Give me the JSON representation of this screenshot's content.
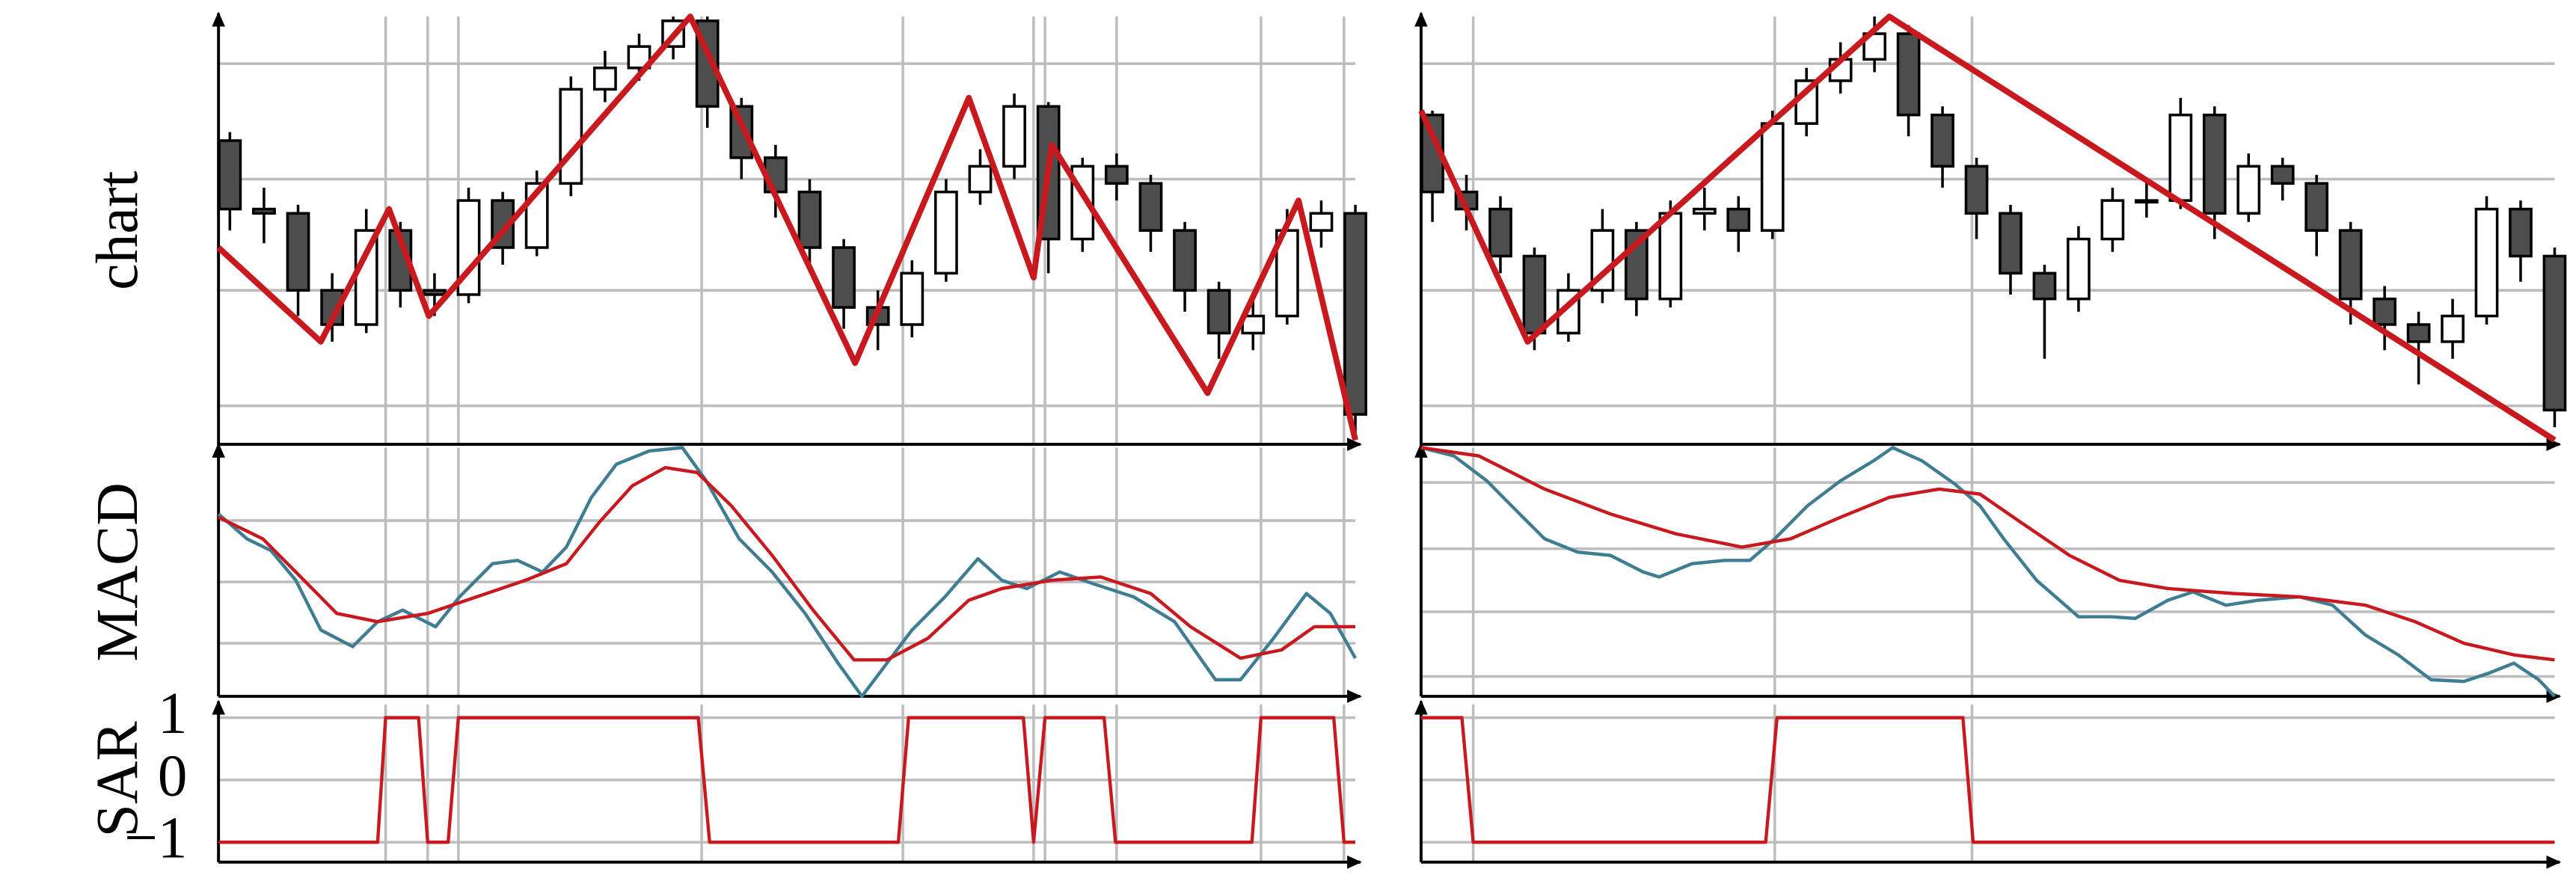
{
  "chart_data": [
    {
      "type": "candlestick",
      "ylabel": "chart",
      "xlim": [
        0,
        100
      ],
      "ylim": [
        0,
        100
      ],
      "yticks": [
        9,
        36,
        62,
        89
      ],
      "tick_labels": false,
      "grid": true,
      "xticks": [
        14.7,
        18.4,
        21.1,
        42.5,
        60.2,
        71.7,
        72.7,
        79,
        91.7,
        99
      ],
      "up_color": "#ffffff",
      "down_color": "#4d4d4d",
      "candles": {
        "x": [
          1,
          4,
          7,
          10,
          13,
          16,
          19,
          22,
          25,
          28,
          31,
          34,
          37,
          40,
          43,
          46,
          49,
          52,
          55,
          58,
          61,
          64,
          67,
          70,
          73,
          76,
          79,
          82,
          85,
          88,
          91,
          94,
          97,
          100
        ],
        "open": [
          71,
          55,
          54,
          36,
          28,
          50,
          36,
          35,
          57,
          46,
          61,
          83,
          88,
          93,
          99,
          79,
          67,
          59,
          46,
          32,
          28,
          40,
          59,
          65,
          79,
          48,
          65,
          61,
          50,
          36,
          26,
          30,
          50,
          54
        ],
        "high": [
          73,
          60,
          56,
          40,
          55,
          52,
          40,
          60,
          59,
          64,
          86,
          92,
          96,
          100,
          100,
          81,
          70,
          62,
          48,
          36,
          43,
          62,
          69,
          82,
          80,
          67,
          68,
          63,
          52,
          38,
          35,
          55,
          57,
          56
        ],
        "low": [
          50,
          47,
          30,
          24,
          26,
          32,
          30,
          33,
          42,
          44,
          58,
          80,
          85,
          90,
          74,
          62,
          53,
          42,
          27,
          22,
          25,
          38,
          56,
          62,
          40,
          45,
          57,
          45,
          31,
          20,
          22,
          28,
          46,
          2
        ],
        "close": [
          55,
          54,
          36,
          28,
          50,
          36,
          35,
          57,
          46,
          61,
          83,
          88,
          93,
          99,
          79,
          67,
          59,
          46,
          32,
          28,
          40,
          59,
          65,
          79,
          48,
          65,
          61,
          50,
          36,
          26,
          30,
          50,
          54,
          7
        ]
      },
      "series": [
        {
          "color": "#c8191e",
          "x": [
            0,
            9,
            15,
            18.5,
            41.5,
            56,
            66,
            71.7,
            73.3,
            87,
            95,
            100
          ],
          "values": [
            46,
            24,
            55,
            30,
            100,
            19,
            81,
            39,
            70,
            12,
            57,
            1
          ]
        }
      ]
    },
    {
      "type": "line",
      "ylabel": "MACD",
      "xlim": [
        0,
        100
      ],
      "ylim": [
        0,
        150
      ],
      "yticks": [
        32,
        69,
        106
      ],
      "tick_labels": false,
      "grid": true,
      "xticks": [
        14.7,
        18.4,
        21.1,
        42.5,
        60.2,
        71.7,
        72.7,
        79,
        91.7,
        99
      ],
      "series": [
        {
          "color": "#3f7d92",
          "x": [
            0,
            2.5,
            4.6,
            6.8,
            9,
            11.8,
            14,
            16.2,
            19.1,
            21.2,
            24.1,
            26.3,
            28.5,
            30.6,
            32.8,
            35,
            37.9,
            40.8,
            42.9,
            45.8,
            48.7,
            51.6,
            54.5,
            56.6,
            58.8,
            61,
            63.9,
            66.8,
            68.9,
            71.1,
            74,
            76.9,
            80.5,
            84.1,
            87.7,
            89.9,
            92.8,
            95.7,
            97.8,
            100
          ],
          "values": [
            110,
            95,
            88,
            70,
            40,
            30,
            45,
            52,
            42,
            60,
            80,
            82,
            75,
            90,
            120,
            140,
            148,
            150,
            130,
            95,
            75,
            50,
            20,
            0,
            20,
            40,
            60,
            83,
            70,
            65,
            75,
            68,
            60,
            45,
            10,
            10,
            35,
            62,
            50,
            23
          ]
        },
        {
          "color": "#c8191e",
          "x": [
            0,
            3.9,
            6.8,
            10.4,
            14,
            18.4,
            22.7,
            27,
            30.6,
            33.5,
            36.4,
            39.3,
            42.1,
            45.1,
            48.7,
            52.3,
            55.9,
            58.8,
            62.4,
            66,
            68.9,
            73.3,
            77.6,
            82,
            85.5,
            89.9,
            93.5,
            96.4,
            100
          ],
          "values": [
            108,
            95,
            75,
            50,
            45,
            50,
            60,
            70,
            80,
            105,
            127,
            138,
            135,
            115,
            85,
            52,
            22,
            22,
            35,
            58,
            65,
            70,
            72,
            62,
            42,
            23,
            28,
            42,
            42
          ]
        }
      ]
    },
    {
      "type": "line",
      "ylabel": "SAR",
      "xlim": [
        0,
        100
      ],
      "ylim": [
        -1.32,
        1.21
      ],
      "yticks": [
        1,
        0,
        {
          "value": -1,
          "label": "−1"
        }
      ],
      "tick_labels": true,
      "grid": true,
      "xticks": [
        14.7,
        18.4,
        21.1,
        42.5,
        60.2,
        71.7,
        72.7,
        79,
        91.7,
        99
      ],
      "series": [
        {
          "color": "#c8191e",
          "x": [
            0,
            14,
            14.7,
            17.6,
            18.4,
            20.2,
            21.1,
            42.2,
            43.2,
            59.8,
            60.7,
            70.8,
            71.7,
            72.7,
            77.9,
            78.9,
            90.9,
            91.7,
            98.1,
            99,
            100
          ],
          "values": [
            -1,
            -1,
            1,
            1,
            -1,
            -1,
            1,
            1,
            -1,
            -1,
            1,
            1,
            -1,
            1,
            1,
            -1,
            -1,
            1,
            1,
            -1,
            -1
          ]
        }
      ]
    },
    {
      "type": "candlestick",
      "xlim": [
        0,
        100
      ],
      "ylim": [
        0,
        100
      ],
      "yticks": [
        9,
        36,
        62,
        89
      ],
      "tick_labels": false,
      "grid": true,
      "xticks": [
        4.6,
        31.2,
        48.6
      ],
      "up_color": "#ffffff",
      "down_color": "#4d4d4d",
      "candles": {
        "x": [
          1,
          4,
          7,
          10,
          13,
          16,
          19,
          22,
          25,
          28,
          31,
          34,
          37,
          40,
          43,
          46,
          49,
          52,
          55,
          58,
          61,
          64,
          67,
          70,
          73,
          76,
          79,
          82,
          85,
          88,
          91,
          94,
          97,
          100
        ],
        "open": [
          77,
          59,
          55,
          44,
          26,
          36,
          50,
          34,
          54,
          55,
          50,
          75,
          85,
          90,
          96,
          77,
          65,
          54,
          40,
          34,
          48,
          57,
          57,
          77,
          54,
          65,
          61,
          50,
          34,
          28,
          24,
          30,
          55,
          44
        ],
        "high": [
          78,
          63,
          58,
          46,
          40,
          55,
          52,
          57,
          60,
          58,
          78,
          88,
          94,
          100,
          98,
          79,
          67,
          56,
          42,
          51,
          60,
          62,
          81,
          79,
          68,
          67,
          63,
          52,
          37,
          31,
          34,
          58,
          57,
          46
        ],
        "low": [
          52,
          50,
          40,
          22,
          24,
          33,
          30,
          32,
          50,
          45,
          48,
          72,
          82,
          87,
          72,
          60,
          48,
          35,
          20,
          31,
          45,
          53,
          55,
          48,
          52,
          57,
          44,
          28,
          22,
          14,
          20,
          28,
          38,
          4
        ],
        "close": [
          59,
          55,
          44,
          26,
          36,
          50,
          34,
          54,
          55,
          50,
          75,
          85,
          90,
          96,
          77,
          65,
          54,
          40,
          34,
          48,
          57,
          57,
          77,
          54,
          65,
          61,
          50,
          34,
          28,
          24,
          30,
          55,
          44,
          8
        ]
      },
      "series": [
        {
          "color": "#c8191e",
          "x": [
            0,
            9.4,
            41.3,
            100
          ],
          "values": [
            78,
            24,
            100,
            1
          ]
        }
      ]
    },
    {
      "type": "line",
      "xlim": [
        0,
        100
      ],
      "ylim": [
        0,
        150
      ],
      "yticks": [
        12,
        51,
        89,
        129
      ],
      "tick_labels": false,
      "grid": true,
      "xticks": [
        4.6,
        31.2,
        48.6
      ],
      "series": [
        {
          "color": "#3f7d92",
          "x": [
            0,
            2.9,
            5.8,
            8.7,
            10.9,
            13.8,
            16.7,
            19.6,
            21,
            23.9,
            26.8,
            29,
            31.2,
            34.1,
            37,
            39.9,
            41.6,
            44.2,
            47.1,
            49.3,
            51.4,
            54.3,
            58,
            60.9,
            63,
            65.9,
            68.1,
            71,
            73.9,
            77.5,
            80.4,
            83.3,
            86.2,
            89.1,
            92,
            94.2,
            96.4,
            98.6,
            100
          ],
          "values": [
            150,
            145,
            130,
            110,
            95,
            87,
            85,
            75,
            72,
            80,
            82,
            82,
            95,
            115,
            130,
            142,
            150,
            142,
            128,
            115,
            95,
            70,
            48,
            48,
            47,
            58,
            63,
            55,
            58,
            60,
            55,
            37,
            25,
            10,
            9,
            14,
            20,
            10,
            0
          ]
        },
        {
          "color": "#c8191e",
          "x": [
            0,
            5.1,
            10.9,
            16.7,
            22.5,
            28.3,
            32.6,
            37,
            41.3,
            45.7,
            49.3,
            52.9,
            57.2,
            61.6,
            65.9,
            71.7,
            77.5,
            83.3,
            87.7,
            92,
            96.4,
            100
          ],
          "values": [
            150,
            145,
            125,
            110,
            98,
            90,
            95,
            108,
            120,
            125,
            122,
            105,
            85,
            70,
            65,
            62,
            60,
            55,
            45,
            32,
            25,
            22
          ]
        }
      ]
    },
    {
      "type": "line",
      "xlim": [
        0,
        100
      ],
      "ylim": [
        -1.32,
        1.21
      ],
      "yticks": [
        1,
        0,
        -1
      ],
      "tick_labels": false,
      "grid": true,
      "xticks": [
        4.6,
        31.2,
        48.6
      ],
      "series": [
        {
          "color": "#c8191e",
          "x": [
            0,
            3.6,
            4.6,
            30.4,
            31.4,
            47.8,
            48.7,
            100
          ],
          "values": [
            1,
            1,
            -1,
            -1,
            1,
            1,
            -1,
            -1
          ]
        }
      ]
    }
  ]
}
